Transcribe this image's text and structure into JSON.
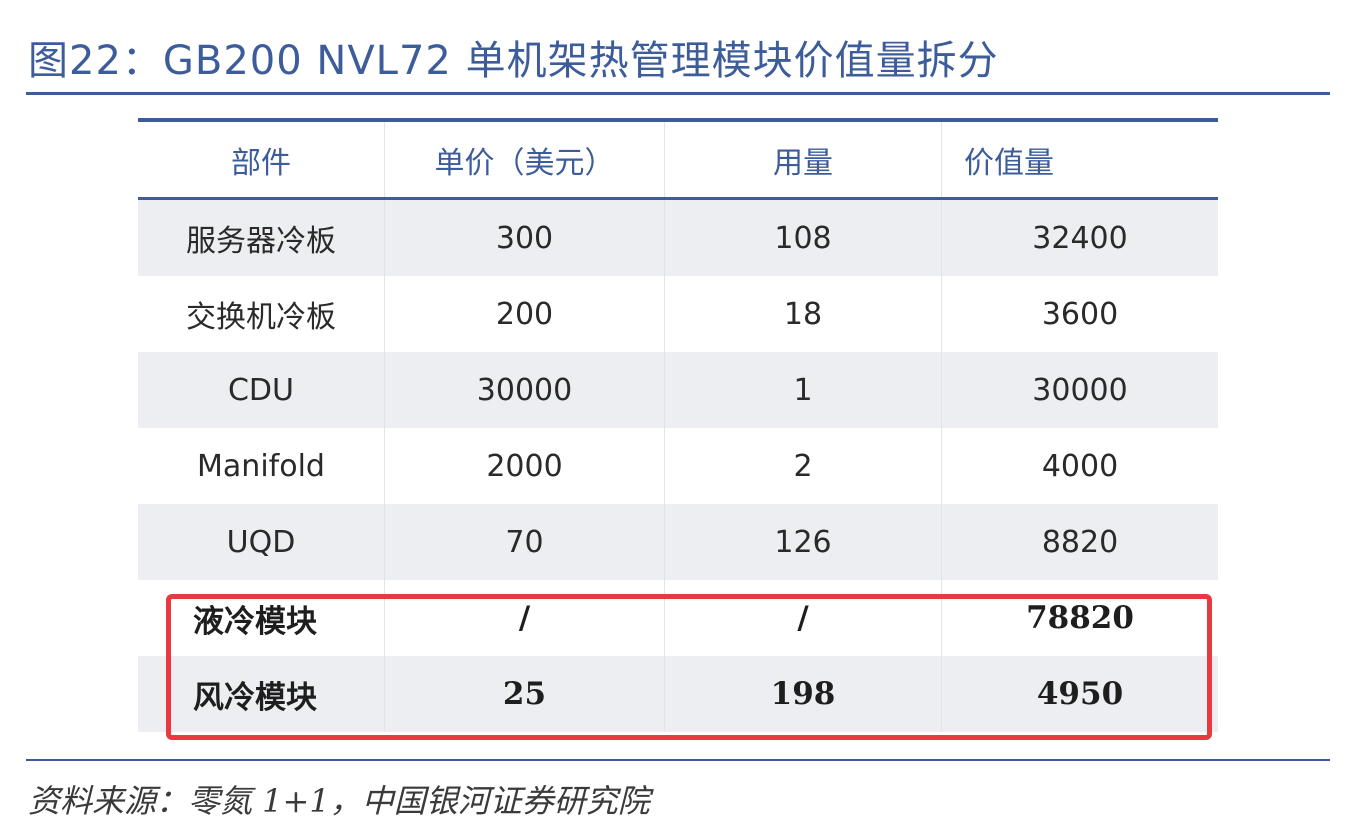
{
  "figure": {
    "title": "图22：GB200 NVL72 单机架热管理模块价值量拆分",
    "source": "资料来源：零氮 1+1，中国银河证券研究院"
  },
  "table": {
    "headers": [
      "部件",
      "单价（美元）",
      "用量",
      "价值量"
    ],
    "rows": [
      [
        "服务器冷板",
        "300",
        "108",
        "32400"
      ],
      [
        "交换机冷板",
        "200",
        "18",
        "3600"
      ],
      [
        "CDU",
        "30000",
        "1",
        "30000"
      ],
      [
        "Manifold",
        "2000",
        "2",
        "4000"
      ],
      [
        "UQD",
        "70",
        "126",
        "8820"
      ],
      [
        "液冷模块",
        "/",
        "/",
        "78820"
      ],
      [
        "风冷模块",
        "25",
        "198",
        "4950"
      ]
    ]
  },
  "colors": {
    "accent": "#3d5c9a",
    "highlight_border": "#e8393e",
    "row_alt": "#eceef2"
  }
}
